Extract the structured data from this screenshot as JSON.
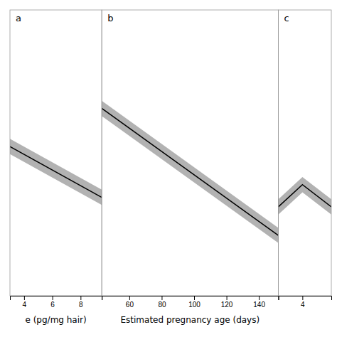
{
  "chart_data": [
    {
      "type": "line",
      "title": "a",
      "xlabel": "e (pg/mg hair)",
      "x": [
        3.0,
        9.5
      ],
      "values": [
        0.535,
        0.455
      ],
      "errors": [
        0.012,
        0.012
      ],
      "color": "#000000",
      "xlim": [
        3.0,
        9.5
      ],
      "xticks": [
        4,
        6,
        8
      ],
      "ylim": [
        0.3,
        0.75
      ],
      "tick_labels": "x"
    },
    {
      "type": "line",
      "title": "b",
      "xlabel": "Estimated pregnancy age (days)",
      "x": [
        43,
        152
      ],
      "values": [
        0.595,
        0.395
      ],
      "errors": [
        0.012,
        0.012
      ],
      "color": "#000000",
      "xlim": [
        43,
        152
      ],
      "xticks": [
        60,
        80,
        100,
        120,
        140
      ],
      "ylim": [
        0.3,
        0.75
      ],
      "tick_labels": "x"
    },
    {
      "type": "line",
      "title": "c",
      "x": [
        1.5,
        4.0,
        7.0
      ],
      "values": [
        0.44,
        0.475,
        0.44
      ],
      "errors": [
        0.012,
        0.012,
        0.012
      ],
      "color": "#000000",
      "xlim": [
        1.5,
        7.0
      ],
      "xticks": [
        4
      ],
      "ylim": [
        0.3,
        0.75
      ],
      "tick_labels": "x"
    }
  ]
}
